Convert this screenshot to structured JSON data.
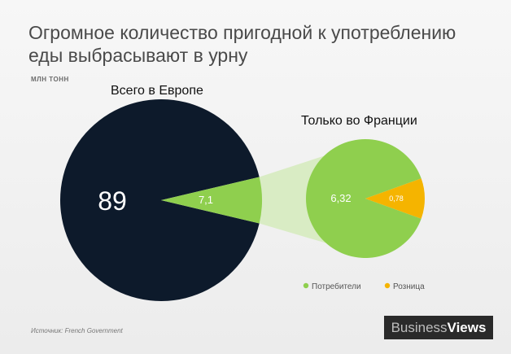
{
  "title": "Огромное количество пригодной к употреблению еды выбрасывают в урну",
  "unit": "млн тонн",
  "source": "Источник: French Government",
  "logo": {
    "part1": "Business",
    "part2": "Views"
  },
  "colors": {
    "europe": "#0d1a2b",
    "france": "#8fcf4e",
    "retail": "#f5b400",
    "connector": "#d9ecc4"
  },
  "chart_data": [
    {
      "type": "pie",
      "title": "Всего в Европе",
      "slices": [
        {
          "label": "89",
          "value": 89
        },
        {
          "label": "7,1",
          "value": 7.1
        }
      ]
    },
    {
      "type": "pie",
      "title": "Только во Франции",
      "slices": [
        {
          "name": "Потребители",
          "label": "6,32",
          "value": 6.32
        },
        {
          "name": "Розница",
          "label": "0,78",
          "value": 0.78
        }
      ],
      "legend": "bottom"
    }
  ]
}
